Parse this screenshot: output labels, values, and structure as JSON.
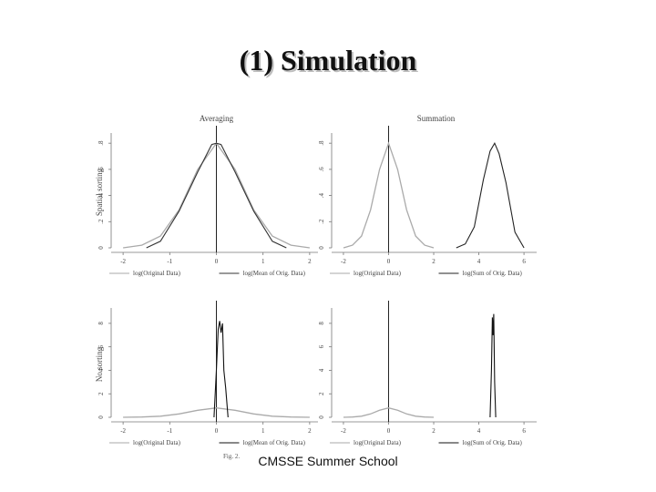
{
  "slide": {
    "title": "(1) Simulation",
    "footer": "CMSSE Summer School",
    "caption": "Fig. 2."
  },
  "chart_data": [
    {
      "type": "line",
      "title": "Averaging",
      "ylabel": "Spatial sorting",
      "xlim": [
        -2.1,
        2.1
      ],
      "ylim": [
        0,
        0.85
      ],
      "xticks": [
        "-2",
        "-1",
        "0",
        "1",
        "2"
      ],
      "yticks": [
        "0",
        ".2",
        ".4",
        ".6",
        ".8"
      ],
      "legend": [
        "log(Original Data)",
        "log(Mean of Orig. Data)"
      ],
      "series": [
        {
          "name": "log(Original Data)",
          "color": "#aaaaaa",
          "x": [
            -2,
            -1.6,
            -1.2,
            -0.8,
            -0.4,
            0,
            0.4,
            0.8,
            1.2,
            1.6,
            2
          ],
          "y": [
            0,
            0.02,
            0.09,
            0.29,
            0.6,
            0.8,
            0.6,
            0.29,
            0.09,
            0.02,
            0
          ]
        },
        {
          "name": "log(Mean of Orig. Data)",
          "color": "#333333",
          "x": [
            -1.5,
            -1.2,
            -0.8,
            -0.4,
            -0.1,
            0,
            0.1,
            0.4,
            0.8,
            1.2,
            1.5
          ],
          "y": [
            0,
            0.05,
            0.28,
            0.58,
            0.79,
            0.8,
            0.79,
            0.58,
            0.28,
            0.05,
            0
          ]
        }
      ]
    },
    {
      "type": "line",
      "title": "Summation",
      "xlim": [
        -2.2,
        6.4
      ],
      "ylim": [
        0,
        0.85
      ],
      "xticks": [
        "-2",
        "0",
        "2",
        "4",
        "6"
      ],
      "yticks": [
        "0",
        ".2",
        ".4",
        ".6",
        ".8"
      ],
      "legend": [
        "log(Original Data)",
        "log(Sum of Orig. Data)"
      ],
      "series": [
        {
          "name": "log(Original Data)",
          "color": "#aaaaaa",
          "x": [
            -2,
            -1.6,
            -1.2,
            -0.8,
            -0.4,
            0,
            0.4,
            0.8,
            1.2,
            1.6,
            2
          ],
          "y": [
            0,
            0.02,
            0.09,
            0.29,
            0.6,
            0.8,
            0.6,
            0.29,
            0.09,
            0.02,
            0
          ]
        },
        {
          "name": "log(Sum of Orig. Data)",
          "color": "#222222",
          "x": [
            3,
            3.4,
            3.8,
            4.2,
            4.5,
            4.7,
            4.9,
            5.2,
            5.6,
            6
          ],
          "y": [
            0,
            0.03,
            0.16,
            0.52,
            0.74,
            0.8,
            0.72,
            0.5,
            0.12,
            0
          ]
        }
      ]
    },
    {
      "type": "line",
      "ylabel": "No sorting",
      "xlim": [
        -2.1,
        2.1
      ],
      "ylim": [
        0,
        9
      ],
      "xticks": [
        "-2",
        "-1",
        "0",
        "1",
        "2"
      ],
      "yticks": [
        "0",
        "2",
        "4",
        "6",
        "8"
      ],
      "legend": [
        "log(Original Data)",
        "log(Mean of Orig. Data)"
      ],
      "series": [
        {
          "name": "log(Original Data)",
          "color": "#aaaaaa",
          "x": [
            -2,
            -1.6,
            -1.2,
            -0.8,
            -0.4,
            0,
            0.4,
            0.8,
            1.2,
            1.6,
            2
          ],
          "y": [
            0,
            0.02,
            0.09,
            0.29,
            0.6,
            0.8,
            0.6,
            0.29,
            0.09,
            0.02,
            0
          ]
        },
        {
          "name": "log(Mean of Orig. Data)",
          "color": "#111111",
          "x": [
            -0.05,
            0,
            0.04,
            0.07,
            0.1,
            0.13,
            0.16,
            0.2,
            0.25
          ],
          "y": [
            0,
            4,
            7.5,
            8.2,
            7.2,
            8,
            4,
            2.5,
            0
          ]
        }
      ]
    },
    {
      "type": "line",
      "xlim": [
        -2.2,
        6.4
      ],
      "ylim": [
        0,
        9
      ],
      "xticks": [
        "-2",
        "0",
        "2",
        "4",
        "6"
      ],
      "yticks": [
        "0",
        "2",
        "4",
        "6",
        "8"
      ],
      "legend": [
        "log(Original Data)",
        "log(Sum of Orig. Data)"
      ],
      "series": [
        {
          "name": "log(Original Data)",
          "color": "#aaaaaa",
          "x": [
            -2,
            -1.6,
            -1.2,
            -0.8,
            -0.4,
            0,
            0.4,
            0.8,
            1.2,
            1.6,
            2
          ],
          "y": [
            0,
            0.02,
            0.09,
            0.29,
            0.6,
            0.8,
            0.6,
            0.29,
            0.09,
            0.02,
            0
          ]
        },
        {
          "name": "log(Sum of Orig. Data)",
          "color": "#111111",
          "x": [
            4.5,
            4.56,
            4.6,
            4.63,
            4.66,
            4.7,
            4.75
          ],
          "y": [
            0,
            4,
            8.5,
            7,
            8.8,
            3,
            0
          ]
        }
      ]
    }
  ]
}
